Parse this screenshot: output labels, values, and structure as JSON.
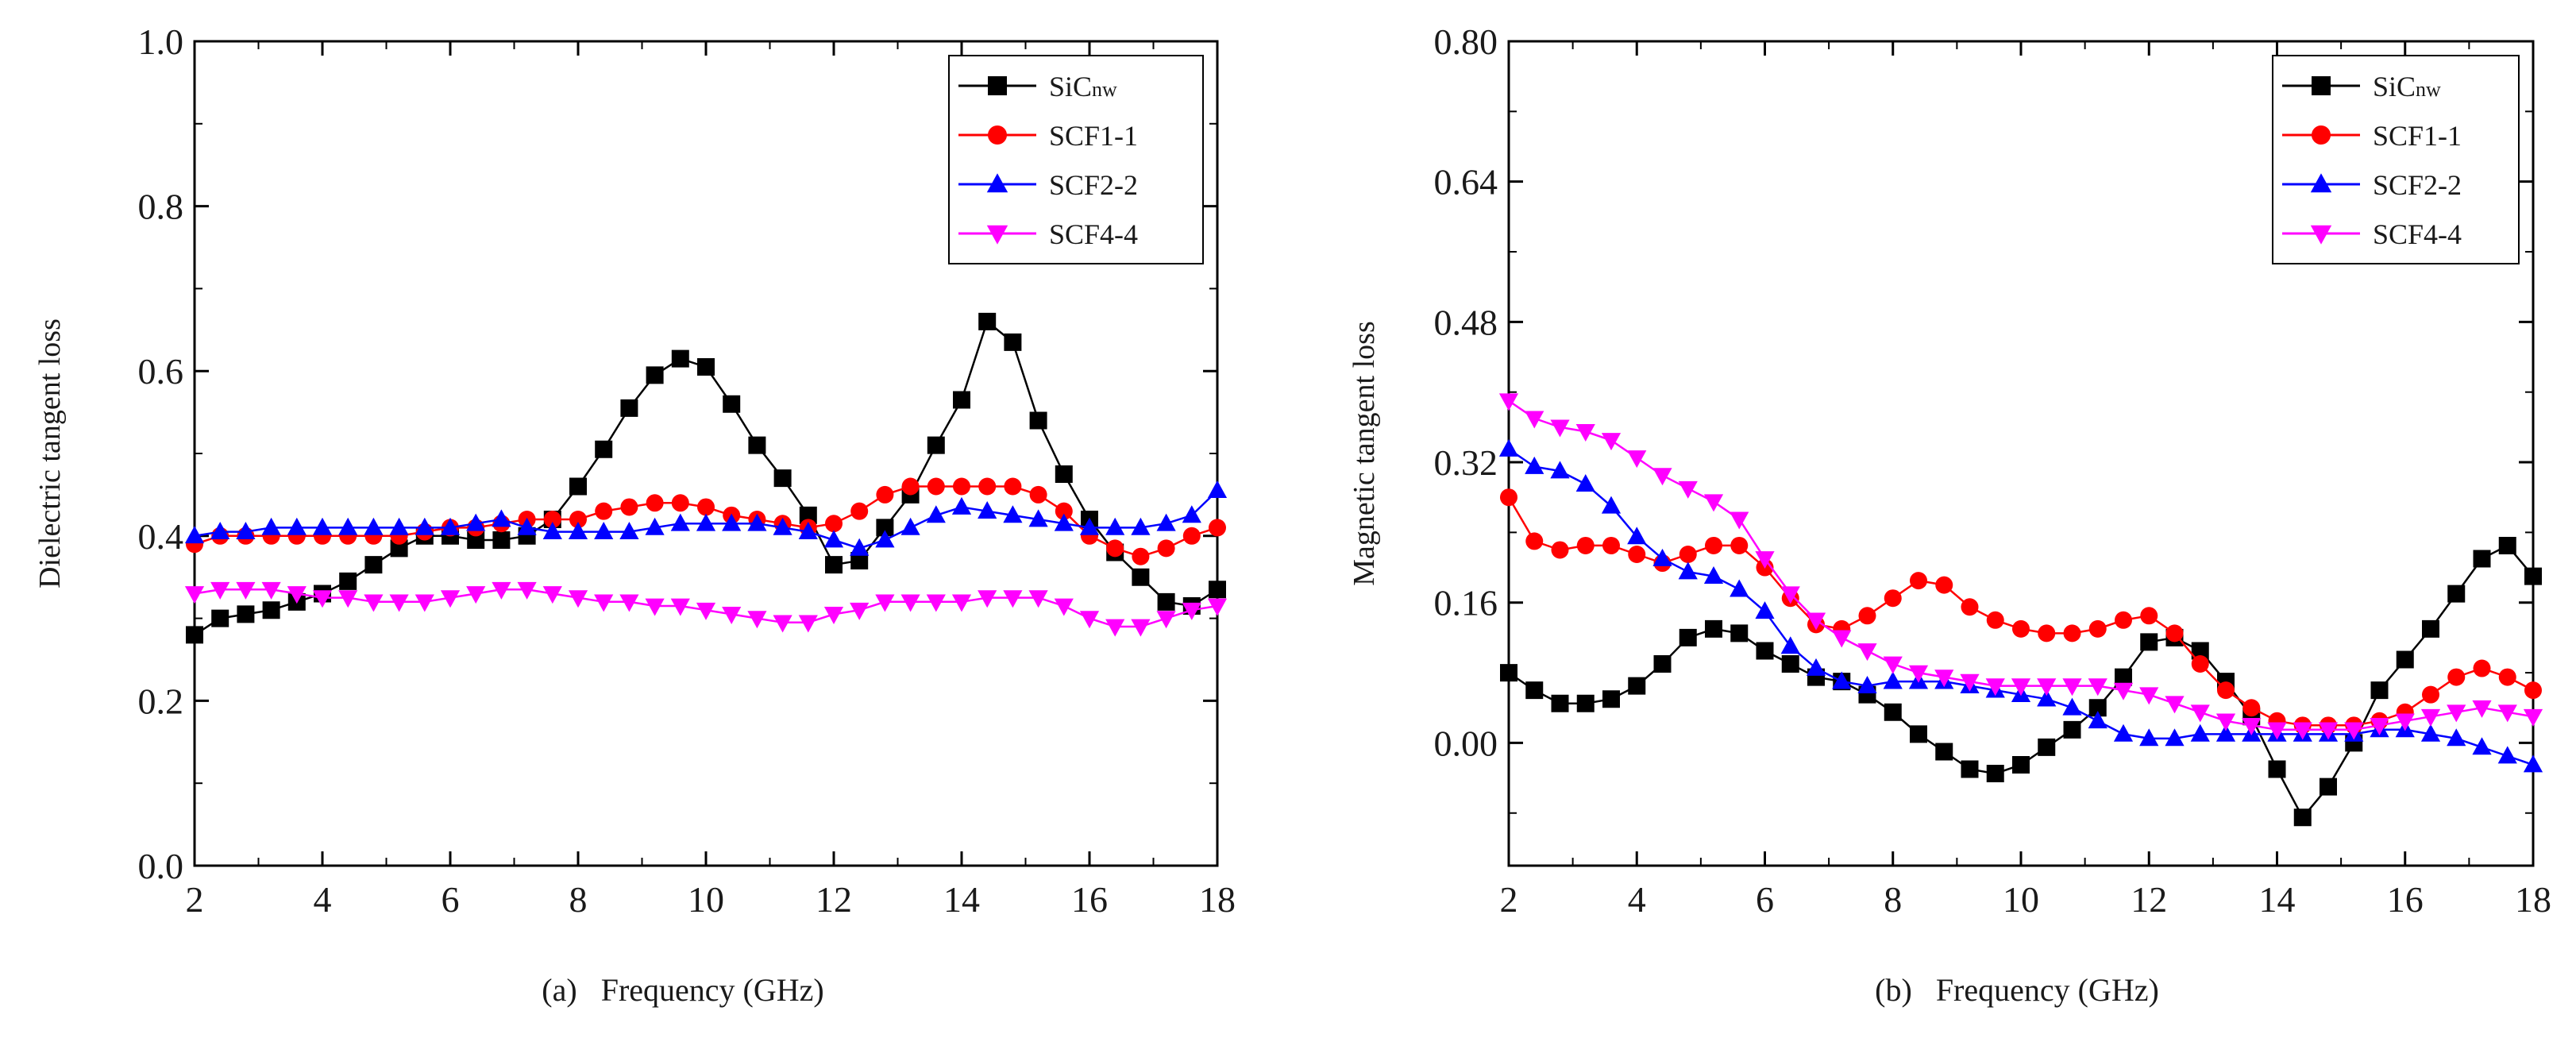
{
  "chart_data": [
    {
      "type": "line",
      "panel_label": "(a)",
      "xlabel": "Frequency (GHz)",
      "ylabel": "Dielectric tangent loss",
      "xlim": [
        2,
        18
      ],
      "ylim": [
        0,
        1.0
      ],
      "xticks": [
        2,
        4,
        6,
        8,
        10,
        12,
        14,
        16,
        18
      ],
      "yticks": [
        0.0,
        0.2,
        0.4,
        0.6,
        0.8,
        1.0
      ],
      "ytick_labels": [
        "0.0",
        "0.2",
        "0.4",
        "0.6",
        "0.8",
        "1.0"
      ],
      "legend_position": "top-right",
      "x": [
        2.0,
        2.4,
        2.8,
        3.2,
        3.6,
        4.0,
        4.4,
        4.8,
        5.2,
        5.6,
        6.0,
        6.4,
        6.8,
        7.2,
        7.6,
        8.0,
        8.4,
        8.8,
        9.2,
        9.6,
        10.0,
        10.4,
        10.8,
        11.2,
        11.6,
        12.0,
        12.4,
        12.8,
        13.2,
        13.6,
        14.0,
        14.4,
        14.8,
        15.2,
        15.6,
        16.0,
        16.4,
        16.8,
        17.2,
        17.6,
        18.0
      ],
      "series": [
        {
          "name": "SiC",
          "name_sub": "nw",
          "color": "#000000",
          "marker": "square",
          "values": [
            0.28,
            0.3,
            0.305,
            0.31,
            0.32,
            0.33,
            0.345,
            0.365,
            0.385,
            0.4,
            0.4,
            0.395,
            0.395,
            0.4,
            0.42,
            0.46,
            0.505,
            0.555,
            0.595,
            0.615,
            0.605,
            0.56,
            0.51,
            0.47,
            0.425,
            0.365,
            0.37,
            0.41,
            0.45,
            0.51,
            0.565,
            0.66,
            0.635,
            0.54,
            0.475,
            0.42,
            0.38,
            0.35,
            0.32,
            0.315,
            0.335
          ]
        },
        {
          "name": "SCF1-1",
          "name_sub": "",
          "color": "#ff0000",
          "marker": "circle",
          "values": [
            0.39,
            0.4,
            0.4,
            0.4,
            0.4,
            0.4,
            0.4,
            0.4,
            0.4,
            0.405,
            0.41,
            0.41,
            0.415,
            0.42,
            0.42,
            0.42,
            0.43,
            0.435,
            0.44,
            0.44,
            0.435,
            0.425,
            0.42,
            0.415,
            0.41,
            0.415,
            0.43,
            0.45,
            0.46,
            0.46,
            0.46,
            0.46,
            0.46,
            0.45,
            0.43,
            0.4,
            0.385,
            0.375,
            0.385,
            0.4,
            0.41
          ]
        },
        {
          "name": "SCF2-2",
          "name_sub": "",
          "color": "#0000ff",
          "marker": "triangle-up",
          "values": [
            0.4,
            0.405,
            0.405,
            0.41,
            0.41,
            0.41,
            0.41,
            0.41,
            0.41,
            0.41,
            0.41,
            0.415,
            0.42,
            0.41,
            0.405,
            0.405,
            0.405,
            0.405,
            0.41,
            0.415,
            0.415,
            0.415,
            0.415,
            0.41,
            0.405,
            0.395,
            0.385,
            0.395,
            0.41,
            0.425,
            0.435,
            0.43,
            0.425,
            0.42,
            0.415,
            0.41,
            0.41,
            0.41,
            0.415,
            0.425,
            0.455
          ]
        },
        {
          "name": "SCF4-4",
          "name_sub": "",
          "color": "#ff00ff",
          "marker": "triangle-down",
          "values": [
            0.33,
            0.335,
            0.335,
            0.335,
            0.33,
            0.325,
            0.325,
            0.32,
            0.32,
            0.32,
            0.325,
            0.33,
            0.335,
            0.335,
            0.33,
            0.325,
            0.32,
            0.32,
            0.315,
            0.315,
            0.31,
            0.305,
            0.3,
            0.295,
            0.295,
            0.305,
            0.31,
            0.32,
            0.32,
            0.32,
            0.32,
            0.325,
            0.325,
            0.325,
            0.315,
            0.3,
            0.29,
            0.29,
            0.3,
            0.31,
            0.315
          ]
        }
      ]
    },
    {
      "type": "line",
      "panel_label": "(b)",
      "xlabel": "Frequency (GHz)",
      "ylabel": "Magnetic tangent loss",
      "xlim": [
        2,
        18
      ],
      "ylim": [
        -0.14,
        0.8
      ],
      "xticks": [
        2,
        4,
        6,
        8,
        10,
        12,
        14,
        16,
        18
      ],
      "yticks": [
        0.0,
        0.16,
        0.32,
        0.48,
        0.64,
        0.8
      ],
      "ytick_labels": [
        "0.00",
        "0.16",
        "0.32",
        "0.48",
        "0.64",
        "0.80"
      ],
      "legend_position": "top-right",
      "x": [
        2.0,
        2.4,
        2.8,
        3.2,
        3.6,
        4.0,
        4.4,
        4.8,
        5.2,
        5.6,
        6.0,
        6.4,
        6.8,
        7.2,
        7.6,
        8.0,
        8.4,
        8.8,
        9.2,
        9.6,
        10.0,
        10.4,
        10.8,
        11.2,
        11.6,
        12.0,
        12.4,
        12.8,
        13.2,
        13.6,
        14.0,
        14.4,
        14.8,
        15.2,
        15.6,
        16.0,
        16.4,
        16.8,
        17.2,
        17.6,
        18.0
      ],
      "series": [
        {
          "name": "SiC",
          "name_sub": "nw",
          "color": "#000000",
          "marker": "square",
          "values": [
            0.08,
            0.06,
            0.045,
            0.045,
            0.05,
            0.065,
            0.09,
            0.12,
            0.13,
            0.125,
            0.105,
            0.09,
            0.075,
            0.07,
            0.055,
            0.035,
            0.01,
            -0.01,
            -0.03,
            -0.035,
            -0.025,
            -0.005,
            0.015,
            0.04,
            0.075,
            0.115,
            0.12,
            0.105,
            0.07,
            0.03,
            -0.03,
            -0.085,
            -0.05,
            0.0,
            0.06,
            0.095,
            0.13,
            0.17,
            0.21,
            0.225,
            0.19
          ]
        },
        {
          "name": "SCF1-1",
          "name_sub": "",
          "color": "#ff0000",
          "marker": "circle",
          "values": [
            0.28,
            0.23,
            0.22,
            0.225,
            0.225,
            0.215,
            0.205,
            0.215,
            0.225,
            0.225,
            0.2,
            0.165,
            0.135,
            0.13,
            0.145,
            0.165,
            0.185,
            0.18,
            0.155,
            0.14,
            0.13,
            0.125,
            0.125,
            0.13,
            0.14,
            0.145,
            0.125,
            0.09,
            0.06,
            0.04,
            0.025,
            0.02,
            0.02,
            0.02,
            0.025,
            0.035,
            0.055,
            0.075,
            0.085,
            0.075,
            0.06
          ]
        },
        {
          "name": "SCF2-2",
          "name_sub": "",
          "color": "#0000ff",
          "marker": "triangle-up",
          "values": [
            0.335,
            0.315,
            0.31,
            0.295,
            0.27,
            0.235,
            0.21,
            0.195,
            0.19,
            0.175,
            0.15,
            0.11,
            0.085,
            0.07,
            0.065,
            0.07,
            0.07,
            0.07,
            0.065,
            0.06,
            0.055,
            0.05,
            0.04,
            0.025,
            0.01,
            0.005,
            0.005,
            0.01,
            0.01,
            0.01,
            0.01,
            0.01,
            0.01,
            0.01,
            0.015,
            0.015,
            0.01,
            0.005,
            -0.005,
            -0.015,
            -0.025
          ]
        },
        {
          "name": "SCF4-4",
          "name_sub": "",
          "color": "#ff00ff",
          "marker": "triangle-down",
          "values": [
            0.39,
            0.37,
            0.36,
            0.355,
            0.345,
            0.325,
            0.305,
            0.29,
            0.275,
            0.255,
            0.21,
            0.17,
            0.14,
            0.12,
            0.105,
            0.09,
            0.08,
            0.075,
            0.07,
            0.065,
            0.065,
            0.065,
            0.065,
            0.065,
            0.06,
            0.055,
            0.045,
            0.035,
            0.025,
            0.02,
            0.015,
            0.015,
            0.015,
            0.015,
            0.02,
            0.025,
            0.03,
            0.035,
            0.04,
            0.035,
            0.03
          ]
        }
      ]
    }
  ]
}
